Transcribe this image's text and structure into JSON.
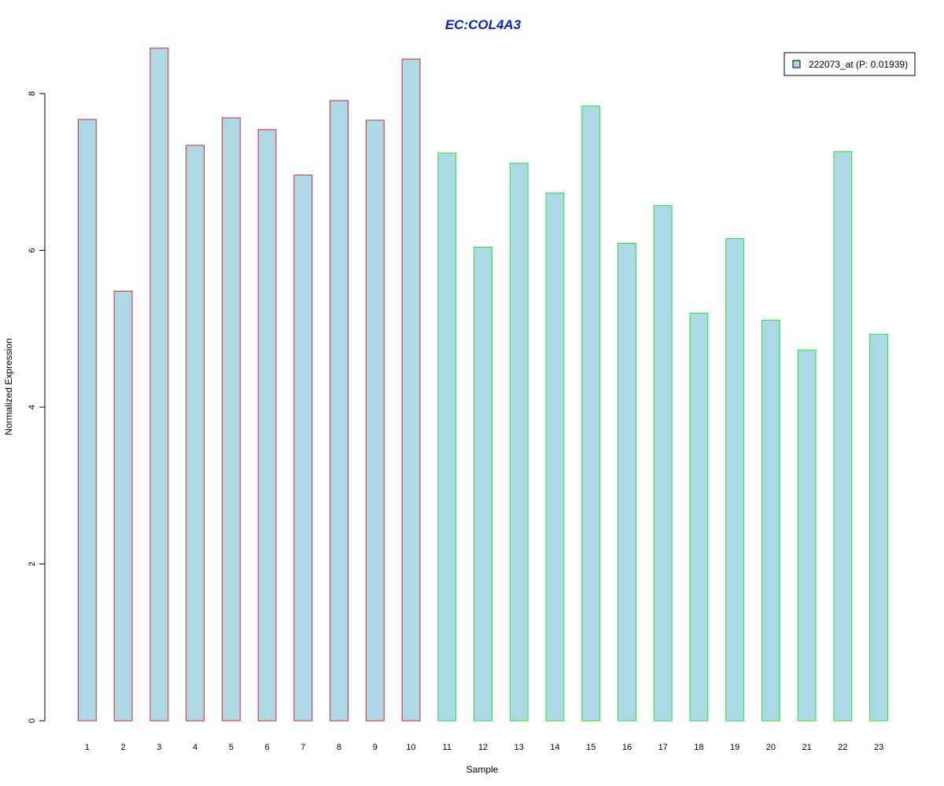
{
  "chart_data": {
    "type": "bar",
    "title": "EC:COL4A3",
    "xlabel": "Sample",
    "ylabel": "Normalized Expression",
    "ylim": [
      0,
      8.6
    ],
    "yticks": [
      0,
      2,
      4,
      6,
      8
    ],
    "categories": [
      "1",
      "2",
      "3",
      "4",
      "5",
      "6",
      "7",
      "8",
      "9",
      "10",
      "11",
      "12",
      "13",
      "14",
      "15",
      "16",
      "17",
      "18",
      "19",
      "20",
      "21",
      "22",
      "23"
    ],
    "series": [
      {
        "name": "222073_at (P: 0.01939)",
        "values": [
          7.67,
          5.48,
          8.58,
          7.34,
          7.69,
          7.54,
          6.96,
          7.91,
          7.66,
          8.44,
          7.24,
          6.04,
          7.11,
          6.73,
          7.84,
          6.09,
          6.57,
          5.2,
          6.15,
          5.11,
          4.73,
          7.26,
          4.93
        ]
      }
    ],
    "groups": [
      {
        "samples": [
          "1",
          "2",
          "3",
          "4",
          "5",
          "6",
          "7",
          "8",
          "9",
          "10"
        ],
        "border_color": "#e8202a"
      },
      {
        "samples": [
          "11",
          "12",
          "13",
          "14",
          "15",
          "16",
          "17",
          "18",
          "19",
          "20",
          "21",
          "22",
          "23"
        ],
        "border_color": "#22e822"
      }
    ],
    "bar_fill": "#add8e6",
    "title_color": "#0a22cc",
    "legend": {
      "position": "top-right",
      "label": "222073_at (P: 0.01939)"
    },
    "grid": false
  }
}
